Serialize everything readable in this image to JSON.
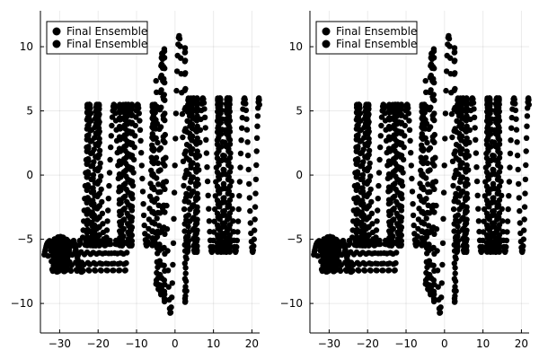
{
  "chart_data": [
    {
      "type": "scatter",
      "title": "",
      "xlabel": "",
      "ylabel": "",
      "xlim": [
        -35,
        22
      ],
      "ylim": [
        -12.3,
        12.8
      ],
      "xticks": [
        -30,
        -20,
        -10,
        0,
        10,
        20
      ],
      "yticks": [
        -10,
        -5,
        0,
        5,
        10
      ],
      "xtick_labels": [
        "−30",
        "−20",
        "−10",
        "0",
        "10",
        "20"
      ],
      "ytick_labels": [
        "−10",
        "−5",
        "0",
        "5",
        "10"
      ],
      "grid": true,
      "legend_position": "top-left",
      "marker_color": "#000000",
      "series": [
        {
          "name": "Final Ensemble",
          "generator": "trajectory",
          "x_range": [
            -34,
            20
          ],
          "y_range": [
            -11.6,
            11.9
          ]
        },
        {
          "name": "Final Ensemble",
          "generator": "trajectory",
          "x_range": [
            -34,
            20
          ],
          "y_range": [
            -11.6,
            11.9
          ]
        }
      ]
    },
    {
      "type": "scatter",
      "title": "",
      "xlabel": "",
      "ylabel": "",
      "xlim": [
        -35,
        22
      ],
      "ylim": [
        -12.3,
        12.8
      ],
      "xticks": [
        -30,
        -20,
        -10,
        0,
        10,
        20
      ],
      "yticks": [
        -10,
        -5,
        0,
        5,
        10
      ],
      "xtick_labels": [
        "−30",
        "−20",
        "−10",
        "0",
        "10",
        "20"
      ],
      "ytick_labels": [
        "−10",
        "−5",
        "0",
        "5",
        "10"
      ],
      "grid": true,
      "legend_position": "top-left",
      "marker_color": "#000000",
      "series": [
        {
          "name": "Final Ensemble",
          "generator": "trajectory",
          "x_range": [
            -34,
            20
          ],
          "y_range": [
            -11.6,
            11.9
          ]
        },
        {
          "name": "Final Ensemble",
          "generator": "trajectory",
          "x_range": [
            -34,
            20
          ],
          "y_range": [
            -11.6,
            11.9
          ]
        }
      ]
    }
  ]
}
